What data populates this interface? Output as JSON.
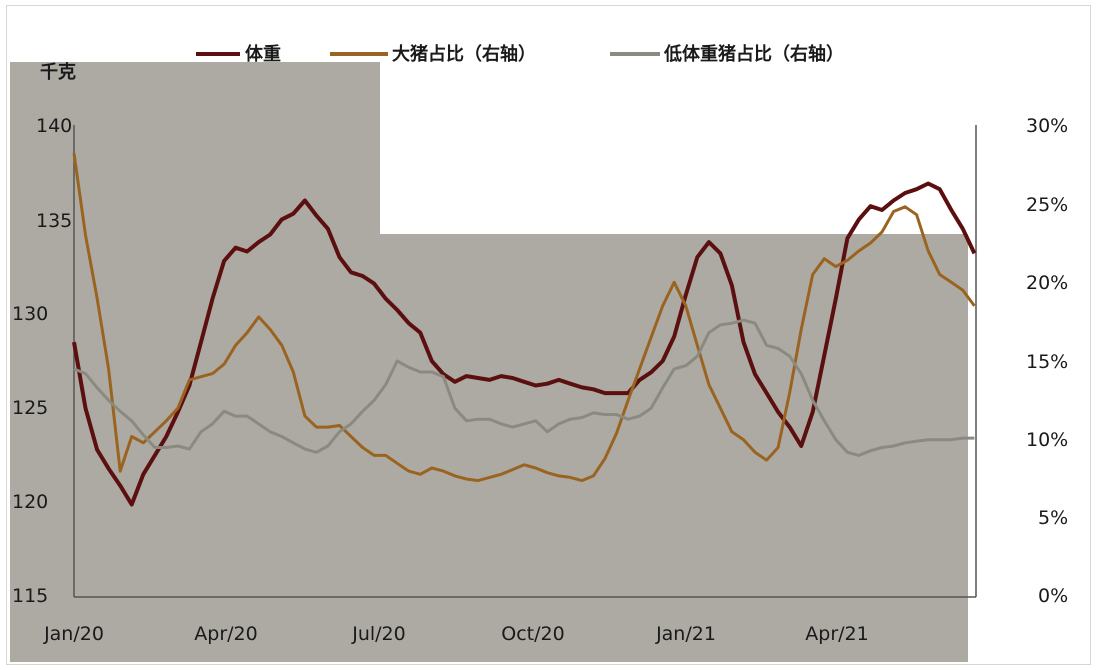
{
  "chart_data": {
    "type": "line",
    "left_axis_unit": "千克",
    "left_ylim": [
      115,
      140
    ],
    "left_ticks": [
      "140",
      "135",
      "130",
      "125",
      "120",
      "115"
    ],
    "right_ylim": [
      0,
      30
    ],
    "right_ticks": [
      "30%",
      "25%",
      "20%",
      "15%",
      "10%",
      "5%",
      "0%"
    ],
    "x_tick_labels": [
      "Jan/20",
      "Apr/20",
      "Jul/20",
      "Oct/20",
      "Jan/21",
      "Apr/21"
    ],
    "legend_position": "top",
    "series": [
      {
        "name": "体重",
        "axis": "left",
        "color": "#5c0f0f",
        "x": [
          "2020-01-01",
          "2020-01-08",
          "2020-01-15",
          "2020-01-22",
          "2020-01-29",
          "2020-02-05",
          "2020-02-12",
          "2020-02-19",
          "2020-02-26",
          "2020-03-04",
          "2020-03-11",
          "2020-03-18",
          "2020-03-25",
          "2020-04-01",
          "2020-04-08",
          "2020-04-15",
          "2020-04-22",
          "2020-04-29",
          "2020-05-06",
          "2020-05-13",
          "2020-05-20",
          "2020-05-27",
          "2020-06-03",
          "2020-06-10",
          "2020-06-17",
          "2020-06-24",
          "2020-07-01",
          "2020-07-08",
          "2020-07-15",
          "2020-07-22",
          "2020-07-29",
          "2020-08-05",
          "2020-08-12",
          "2020-08-19",
          "2020-08-26",
          "2020-09-02",
          "2020-09-09",
          "2020-09-16",
          "2020-09-23",
          "2020-09-30",
          "2020-10-07",
          "2020-10-14",
          "2020-10-21",
          "2020-10-28",
          "2020-11-04",
          "2020-11-11",
          "2020-11-18",
          "2020-11-25",
          "2020-12-02",
          "2020-12-09",
          "2020-12-16",
          "2020-12-23",
          "2020-12-30",
          "2021-01-06",
          "2021-01-13",
          "2021-01-20",
          "2021-01-27",
          "2021-02-03",
          "2021-02-10",
          "2021-02-17",
          "2021-02-24",
          "2021-03-03",
          "2021-03-10",
          "2021-03-17",
          "2021-03-24",
          "2021-03-31",
          "2021-04-07",
          "2021-04-14",
          "2021-04-21",
          "2021-04-28",
          "2021-05-05",
          "2021-05-12",
          "2021-05-19",
          "2021-05-26",
          "2021-06-02",
          "2021-06-09",
          "2021-06-16",
          "2021-06-23",
          "2021-06-30"
        ],
        "values": [
          128.5,
          125.0,
          122.8,
          121.8,
          120.9,
          119.9,
          121.5,
          122.5,
          123.5,
          124.8,
          126.2,
          128.5,
          130.8,
          132.8,
          133.5,
          133.3,
          133.8,
          134.2,
          135.0,
          135.3,
          136.0,
          135.2,
          134.5,
          133.0,
          132.2,
          132.0,
          131.6,
          130.8,
          130.2,
          129.5,
          129.0,
          127.5,
          126.8,
          126.4,
          126.7,
          126.6,
          126.5,
          126.7,
          126.6,
          126.4,
          126.2,
          126.3,
          126.5,
          126.3,
          126.1,
          126.0,
          125.8,
          125.8,
          125.8,
          126.5,
          126.9,
          127.5,
          128.8,
          131.0,
          133.0,
          133.8,
          133.2,
          131.5,
          128.5,
          126.8,
          125.8,
          124.8,
          124.0,
          123.0,
          124.8,
          127.8,
          130.8,
          134.0,
          135.0,
          135.7,
          135.5,
          136.0,
          136.4,
          136.6,
          136.9,
          136.6,
          135.5,
          134.5,
          133.2
        ]
      },
      {
        "name": "大猪占比（右轴）",
        "axis": "right",
        "color": "#9a6420",
        "x": [
          "2020-01-01",
          "2020-01-08",
          "2020-01-15",
          "2020-01-22",
          "2020-01-29",
          "2020-02-05",
          "2020-02-12",
          "2020-02-19",
          "2020-02-26",
          "2020-03-04",
          "2020-03-11",
          "2020-03-18",
          "2020-03-25",
          "2020-04-01",
          "2020-04-08",
          "2020-04-15",
          "2020-04-22",
          "2020-04-29",
          "2020-05-06",
          "2020-05-13",
          "2020-05-20",
          "2020-05-27",
          "2020-06-03",
          "2020-06-10",
          "2020-06-17",
          "2020-06-24",
          "2020-07-01",
          "2020-07-08",
          "2020-07-15",
          "2020-07-22",
          "2020-07-29",
          "2020-08-05",
          "2020-08-12",
          "2020-08-19",
          "2020-08-26",
          "2020-09-02",
          "2020-09-09",
          "2020-09-16",
          "2020-09-23",
          "2020-09-30",
          "2020-10-07",
          "2020-10-14",
          "2020-10-21",
          "2020-10-28",
          "2020-11-04",
          "2020-11-11",
          "2020-11-18",
          "2020-11-25",
          "2020-12-02",
          "2020-12-09",
          "2020-12-16",
          "2020-12-23",
          "2020-12-30",
          "2021-01-06",
          "2021-01-13",
          "2021-01-20",
          "2021-01-27",
          "2021-02-03",
          "2021-02-10",
          "2021-02-17",
          "2021-02-24",
          "2021-03-03",
          "2021-03-10",
          "2021-03-17",
          "2021-03-24",
          "2021-03-31",
          "2021-04-07",
          "2021-04-14",
          "2021-04-21",
          "2021-04-28",
          "2021-05-05",
          "2021-05-12",
          "2021-05-19",
          "2021-05-26",
          "2021-06-02",
          "2021-06-09",
          "2021-06-16",
          "2021-06-23",
          "2021-06-30"
        ],
        "values": [
          28.2,
          23.0,
          19.0,
          14.5,
          8.0,
          10.2,
          9.8,
          10.5,
          11.2,
          12.0,
          13.8,
          14.0,
          14.2,
          14.8,
          16.0,
          16.8,
          17.8,
          17.0,
          16.0,
          14.3,
          11.5,
          10.8,
          10.8,
          10.9,
          10.2,
          9.5,
          9.0,
          9.0,
          8.5,
          8.0,
          7.8,
          8.2,
          8.0,
          7.7,
          7.5,
          7.4,
          7.6,
          7.8,
          8.1,
          8.4,
          8.2,
          7.9,
          7.7,
          7.6,
          7.4,
          7.7,
          8.8,
          10.4,
          12.5,
          14.5,
          16.5,
          18.5,
          20.0,
          18.5,
          16.0,
          13.5,
          12.0,
          10.5,
          10.0,
          9.2,
          8.7,
          9.5,
          13.0,
          17.0,
          20.5,
          21.5,
          21.0,
          21.4,
          22.0,
          22.5,
          23.2,
          24.5,
          24.8,
          24.3,
          22.0,
          20.5,
          20.0,
          19.5,
          18.5
        ]
      },
      {
        "name": "低体重猪占比（右轴）",
        "axis": "right",
        "color": "#8a8a80",
        "x": [
          "2020-01-01",
          "2020-01-08",
          "2020-01-15",
          "2020-01-22",
          "2020-01-29",
          "2020-02-05",
          "2020-02-12",
          "2020-02-19",
          "2020-02-26",
          "2020-03-04",
          "2020-03-11",
          "2020-03-18",
          "2020-03-25",
          "2020-04-01",
          "2020-04-08",
          "2020-04-15",
          "2020-04-22",
          "2020-04-29",
          "2020-05-06",
          "2020-05-13",
          "2020-05-20",
          "2020-05-27",
          "2020-06-03",
          "2020-06-10",
          "2020-06-17",
          "2020-06-24",
          "2020-07-01",
          "2020-07-08",
          "2020-07-15",
          "2020-07-22",
          "2020-07-29",
          "2020-08-05",
          "2020-08-12",
          "2020-08-19",
          "2020-08-26",
          "2020-09-02",
          "2020-09-09",
          "2020-09-16",
          "2020-09-23",
          "2020-09-30",
          "2020-10-07",
          "2020-10-14",
          "2020-10-21",
          "2020-10-28",
          "2020-11-04",
          "2020-11-11",
          "2020-11-18",
          "2020-11-25",
          "2020-12-02",
          "2020-12-09",
          "2020-12-16",
          "2020-12-23",
          "2020-12-30",
          "2021-01-06",
          "2021-01-13",
          "2021-01-20",
          "2021-01-27",
          "2021-02-03",
          "2021-02-10",
          "2021-02-17",
          "2021-02-24",
          "2021-03-03",
          "2021-03-10",
          "2021-03-17",
          "2021-03-24",
          "2021-03-31",
          "2021-04-07",
          "2021-04-14",
          "2021-04-21",
          "2021-04-28",
          "2021-05-05",
          "2021-05-12",
          "2021-05-19",
          "2021-05-26",
          "2021-06-02",
          "2021-06-09",
          "2021-06-16",
          "2021-06-23",
          "2021-06-30"
        ],
        "values": [
          14.5,
          14.2,
          13.3,
          12.5,
          11.8,
          11.2,
          10.3,
          9.5,
          9.5,
          9.6,
          9.4,
          10.5,
          11.0,
          11.8,
          11.5,
          11.5,
          11.0,
          10.5,
          10.2,
          9.8,
          9.4,
          9.2,
          9.6,
          10.5,
          11.0,
          11.8,
          12.5,
          13.5,
          15.0,
          14.6,
          14.3,
          14.3,
          14.0,
          12.0,
          11.2,
          11.3,
          11.3,
          11.0,
          10.8,
          11.0,
          11.2,
          10.5,
          11.0,
          11.3,
          11.4,
          11.7,
          11.6,
          11.6,
          11.3,
          11.5,
          12.0,
          13.3,
          14.5,
          14.7,
          15.3,
          16.8,
          17.3,
          17.4,
          17.6,
          17.4,
          16.0,
          15.8,
          15.3,
          14.2,
          12.5,
          11.2,
          10.0,
          9.2,
          9.0,
          9.3,
          9.5,
          9.6,
          9.8,
          9.9,
          10.0,
          10.0,
          10.0,
          10.1,
          10.1
        ]
      }
    ]
  }
}
